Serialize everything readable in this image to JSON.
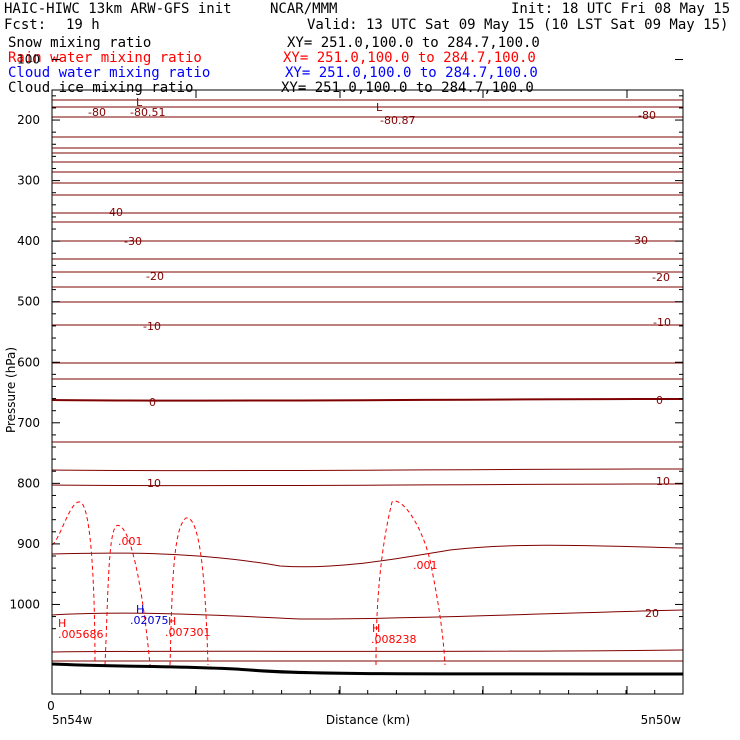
{
  "header": {
    "title": "HAIC-HIWC 13km ARW-GFS init",
    "center": "NCAR/MMM",
    "init": "Init: 18 UTC Fri 08 May 15",
    "fcst_label": "Fcst:",
    "fcst_value": "19 h",
    "valid": "Valid: 13 UTC Sat 09 May 15 (10 LST Sat 09 May 15)",
    "fields": [
      {
        "name": "Snow mixing ratio",
        "xy": "XY= 251.0,100.0 to 284.7,100.0",
        "color": "#000000"
      },
      {
        "name": "Rain water mixing ratio",
        "xy": "XY= 251.0,100.0 to 284.7,100.0",
        "color": "#ff0000"
      },
      {
        "name": "Cloud water mixing ratio",
        "xy": "XY= 251.0,100.0 to 284.7,100.0",
        "color": "#0000ff"
      },
      {
        "name": "Cloud ice mixing ratio",
        "xy": "XY= 251.0,100.0 to 284.7,100.0",
        "color": "#000000"
      }
    ]
  },
  "chart_data": {
    "type": "line",
    "ylabel": "Pressure (hPa)",
    "xlabel": "Distance (km)",
    "x_zero_label": "0",
    "x_left_label": "5n54w",
    "x_right_label": "5n50w",
    "y_ticks": [
      100,
      200,
      300,
      400,
      500,
      600,
      700,
      800,
      900,
      1000
    ],
    "ylim": [
      1050,
      62
    ],
    "temperature_contour_labels": [
      "-80",
      "-80.51",
      "-80.87",
      "-80",
      "-40",
      "-30",
      "-30",
      "-20",
      "-20",
      "-10",
      "-10",
      "0",
      "0",
      "10",
      "10",
      "20"
    ],
    "extrema_labels": [
      {
        "mark": "L",
        "value": "-80.51"
      },
      {
        "mark": "L",
        "value": "-80.87"
      },
      {
        "mark": "H",
        "value": ".005686"
      },
      {
        "mark": "H",
        "value": ".02075"
      },
      {
        "mark": "H",
        "value": ".007301"
      },
      {
        "mark": "H",
        "value": ".008238"
      }
    ],
    "rain_contour_labels": [
      ".001",
      ".001"
    ],
    "colors": {
      "temperature": "#7f0000",
      "rain": "#ff0000",
      "cloud": "#0000cc",
      "ground": "#000000"
    }
  }
}
